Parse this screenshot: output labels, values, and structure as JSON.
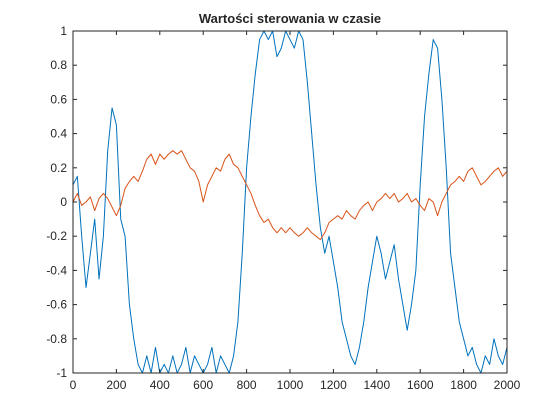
{
  "chart_data": {
    "type": "line",
    "title": "Wartości sterowania w czasie",
    "xlabel": "",
    "ylabel": "",
    "xlim": [
      0,
      2000
    ],
    "ylim": [
      -1,
      1
    ],
    "xticks": [
      0,
      200,
      400,
      600,
      800,
      1000,
      1200,
      1400,
      1600,
      1800,
      2000
    ],
    "yticks": [
      -1,
      -0.8,
      -0.6,
      -0.4,
      -0.2,
      0,
      0.2,
      0.4,
      0.6,
      0.8,
      1
    ],
    "grid": false,
    "legend": "none",
    "series": [
      {
        "color": "#0072BD",
        "x": [
          0,
          20,
          40,
          60,
          80,
          100,
          120,
          140,
          160,
          180,
          200,
          220,
          240,
          260,
          280,
          300,
          320,
          340,
          360,
          380,
          400,
          420,
          440,
          460,
          480,
          500,
          520,
          540,
          560,
          580,
          600,
          620,
          640,
          660,
          680,
          700,
          720,
          740,
          760,
          780,
          800,
          820,
          840,
          860,
          880,
          900,
          920,
          940,
          960,
          980,
          1000,
          1020,
          1040,
          1060,
          1080,
          1100,
          1120,
          1140,
          1160,
          1180,
          1200,
          1220,
          1240,
          1260,
          1280,
          1300,
          1320,
          1340,
          1360,
          1380,
          1400,
          1420,
          1440,
          1460,
          1480,
          1500,
          1520,
          1540,
          1560,
          1580,
          1600,
          1620,
          1640,
          1660,
          1680,
          1700,
          1720,
          1740,
          1760,
          1780,
          1800,
          1820,
          1840,
          1860,
          1880,
          1900,
          1920,
          1940,
          1960,
          1980,
          2000
        ],
        "y": [
          0.1,
          0.15,
          -0.2,
          -0.5,
          -0.3,
          -0.1,
          -0.45,
          -0.2,
          0.3,
          0.55,
          0.45,
          -0.1,
          -0.2,
          -0.6,
          -0.8,
          -0.95,
          -1,
          -0.9,
          -1,
          -0.85,
          -1,
          -0.95,
          -1,
          -0.9,
          -1,
          -0.95,
          -0.85,
          -1,
          -0.9,
          -0.95,
          -1,
          -0.95,
          -0.85,
          -1,
          -0.9,
          -0.95,
          -1,
          -0.9,
          -0.7,
          -0.3,
          0.2,
          0.5,
          0.75,
          0.95,
          1,
          0.95,
          1,
          0.85,
          0.9,
          1,
          0.95,
          0.9,
          1,
          0.95,
          0.7,
          0.4,
          0.1,
          -0.15,
          -0.3,
          -0.2,
          -0.35,
          -0.5,
          -0.7,
          -0.8,
          -0.9,
          -0.95,
          -0.85,
          -0.7,
          -0.5,
          -0.35,
          -0.2,
          -0.3,
          -0.45,
          -0.35,
          -0.25,
          -0.45,
          -0.6,
          -0.75,
          -0.6,
          -0.4,
          0.1,
          0.5,
          0.75,
          0.95,
          0.9,
          0.6,
          0.2,
          -0.3,
          -0.5,
          -0.7,
          -0.8,
          -0.9,
          -0.85,
          -0.95,
          -1,
          -0.9,
          -0.95,
          -0.8,
          -0.9,
          -0.95,
          -0.85
        ]
      },
      {
        "color": "#D95319",
        "x": [
          0,
          20,
          40,
          60,
          80,
          100,
          120,
          140,
          160,
          180,
          200,
          220,
          240,
          260,
          280,
          300,
          320,
          340,
          360,
          380,
          400,
          420,
          440,
          460,
          480,
          500,
          520,
          540,
          560,
          580,
          600,
          620,
          640,
          660,
          680,
          700,
          720,
          740,
          760,
          780,
          800,
          820,
          840,
          860,
          880,
          900,
          920,
          940,
          960,
          980,
          1000,
          1020,
          1040,
          1060,
          1080,
          1100,
          1120,
          1140,
          1160,
          1180,
          1200,
          1220,
          1240,
          1260,
          1280,
          1300,
          1320,
          1340,
          1360,
          1380,
          1400,
          1420,
          1440,
          1460,
          1480,
          1500,
          1520,
          1540,
          1560,
          1580,
          1600,
          1620,
          1640,
          1660,
          1680,
          1700,
          1720,
          1740,
          1760,
          1780,
          1800,
          1820,
          1840,
          1860,
          1880,
          1900,
          1920,
          1940,
          1960,
          1980,
          2000
        ],
        "y": [
          0.0,
          0.05,
          -0.02,
          0.0,
          0.03,
          -0.05,
          0.02,
          0.05,
          0.02,
          -0.03,
          -0.08,
          -0.02,
          0.08,
          0.12,
          0.15,
          0.12,
          0.18,
          0.25,
          0.28,
          0.22,
          0.28,
          0.25,
          0.28,
          0.3,
          0.28,
          0.3,
          0.25,
          0.2,
          0.18,
          0.12,
          0.0,
          0.1,
          0.15,
          0.2,
          0.18,
          0.25,
          0.28,
          0.22,
          0.2,
          0.15,
          0.1,
          0.05,
          -0.02,
          -0.08,
          -0.12,
          -0.1,
          -0.15,
          -0.18,
          -0.15,
          -0.18,
          -0.15,
          -0.18,
          -0.2,
          -0.18,
          -0.15,
          -0.18,
          -0.2,
          -0.22,
          -0.18,
          -0.12,
          -0.1,
          -0.08,
          -0.1,
          -0.05,
          -0.08,
          -0.1,
          -0.05,
          -0.02,
          0.0,
          -0.05,
          0.0,
          0.02,
          0.05,
          0.02,
          0.05,
          0.0,
          0.02,
          0.05,
          0.0,
          0.02,
          -0.02,
          -0.05,
          0.02,
          0.0,
          -0.08,
          0.0,
          0.05,
          0.1,
          0.12,
          0.15,
          0.12,
          0.18,
          0.2,
          0.15,
          0.1,
          0.12,
          0.15,
          0.18,
          0.2,
          0.15,
          0.18
        ]
      }
    ]
  }
}
